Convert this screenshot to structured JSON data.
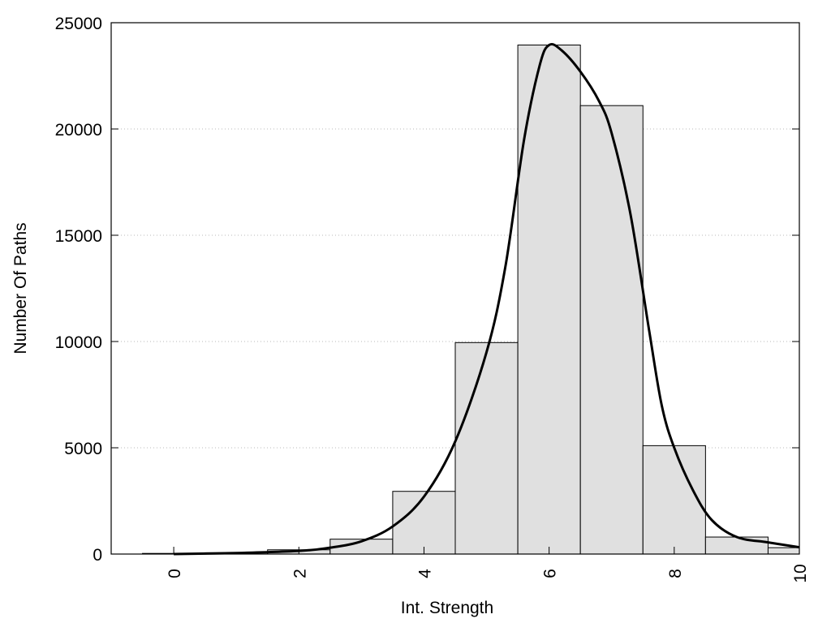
{
  "chart_data": {
    "type": "bar",
    "xlabel": "Int. Strength",
    "ylabel": "Number Of Paths",
    "xlim": [
      -1,
      10
    ],
    "ylim": [
      0,
      25000
    ],
    "grid": "horizontal dotted",
    "x_ticks": [
      0,
      2,
      4,
      6,
      8,
      10
    ],
    "y_ticks": [
      0,
      5000,
      10000,
      15000,
      20000,
      25000
    ],
    "bar_width": 1,
    "bar_color": "#e0e0e0",
    "bars": [
      {
        "x": 0,
        "value": 30
      },
      {
        "x": 1,
        "value": 60
      },
      {
        "x": 2,
        "value": 200
      },
      {
        "x": 3,
        "value": 700
      },
      {
        "x": 4,
        "value": 2950
      },
      {
        "x": 5,
        "value": 9950
      },
      {
        "x": 6,
        "value": 23950
      },
      {
        "x": 7,
        "value": 21100
      },
      {
        "x": 8,
        "value": 5100
      },
      {
        "x": 9,
        "value": 800
      },
      {
        "x": 10,
        "value": 300
      }
    ],
    "curve": {
      "color": "#000000",
      "points": [
        [
          0,
          0
        ],
        [
          1,
          50
        ],
        [
          2,
          150
        ],
        [
          2.5,
          300
        ],
        [
          3,
          600
        ],
        [
          3.5,
          1300
        ],
        [
          4,
          2700
        ],
        [
          4.5,
          5300
        ],
        [
          5,
          9500
        ],
        [
          5.3,
          13500
        ],
        [
          5.6,
          19500
        ],
        [
          5.85,
          23000
        ],
        [
          6,
          23950
        ],
        [
          6.2,
          23700
        ],
        [
          6.5,
          22700
        ],
        [
          6.8,
          21300
        ],
        [
          7,
          19800
        ],
        [
          7.3,
          16000
        ],
        [
          7.6,
          10500
        ],
        [
          7.8,
          7000
        ],
        [
          8,
          5000
        ],
        [
          8.3,
          3000
        ],
        [
          8.6,
          1600
        ],
        [
          9,
          800
        ],
        [
          9.5,
          550
        ],
        [
          10,
          320
        ]
      ]
    }
  }
}
